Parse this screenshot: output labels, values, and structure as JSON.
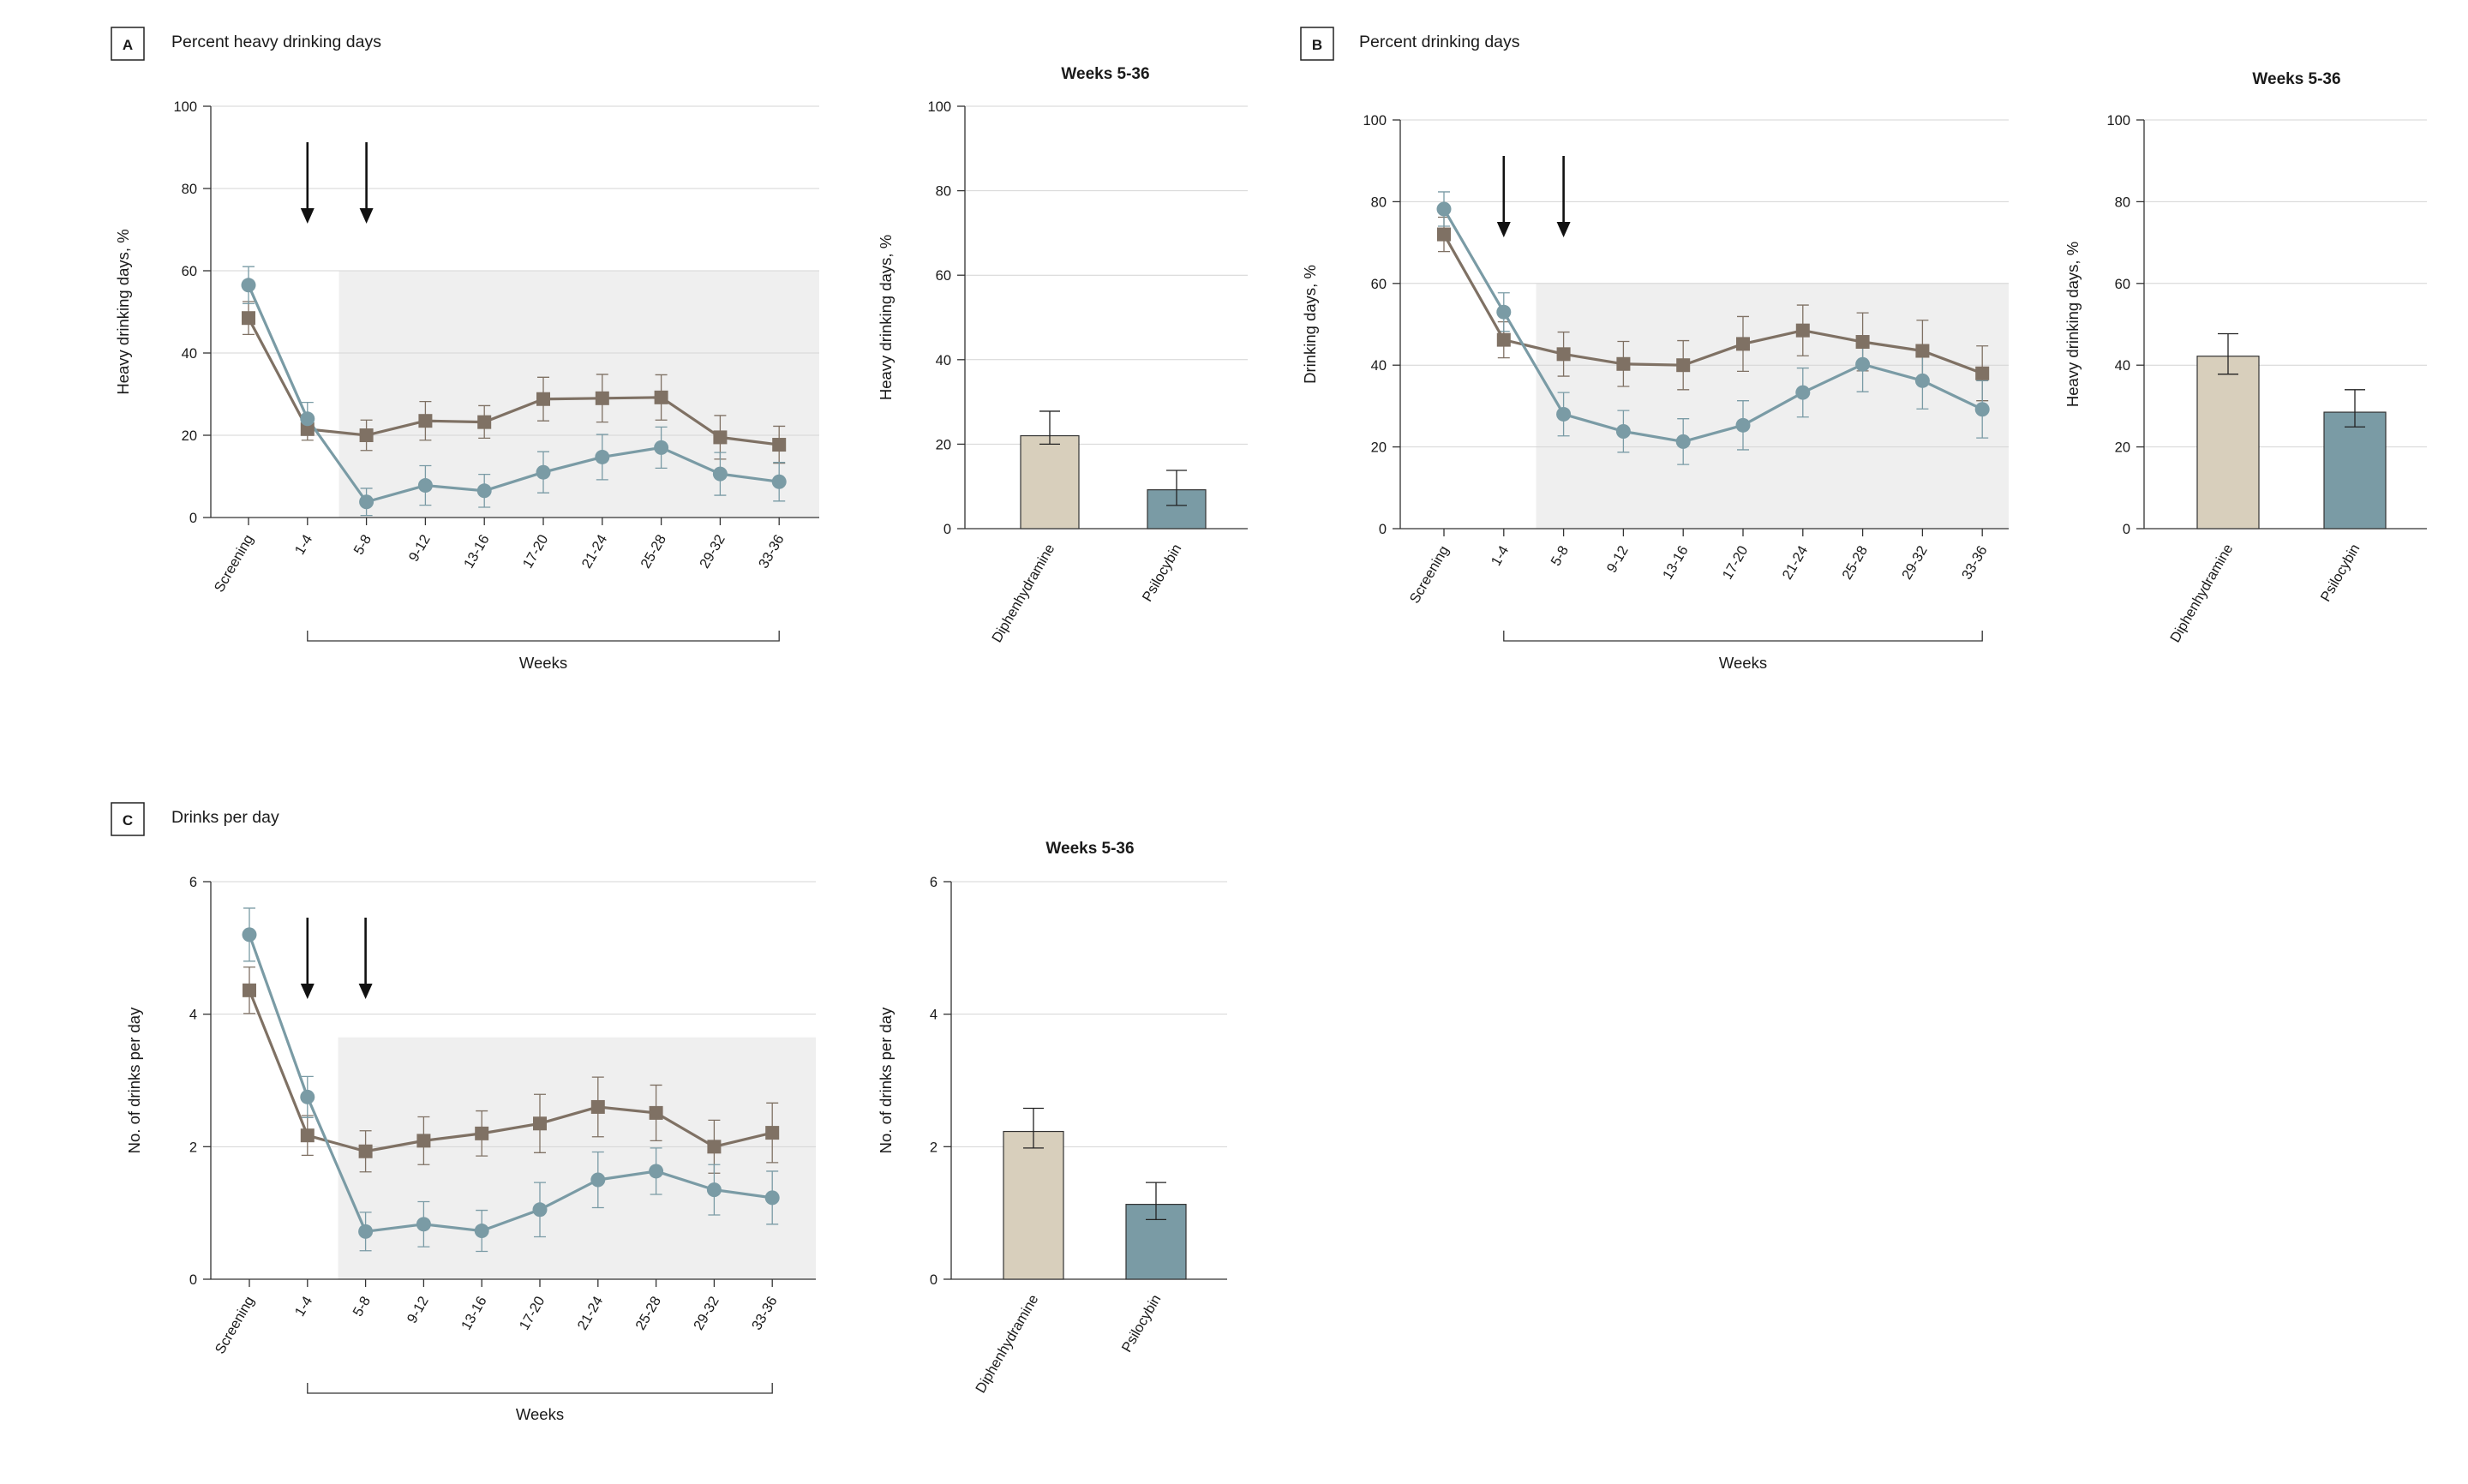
{
  "chart_data": [
    {
      "panel": "A",
      "type": "line",
      "title": "Percent heavy drinking days",
      "xlabel": "Weeks",
      "ylabel": "Heavy drinking days, %",
      "ylim": [
        0,
        100
      ],
      "yticks": [
        0,
        20,
        40,
        60,
        80,
        100
      ],
      "categories": [
        "Screening",
        "1-4",
        "5-8",
        "9-12",
        "13-16",
        "17-20",
        "21-24",
        "25-28",
        "29-32",
        "33-36"
      ],
      "grid": true,
      "shaded_from_category": "5-8",
      "arrows_at": [
        "1-4",
        "5-8"
      ],
      "series": [
        {
          "color": "#7f7164",
          "marker": "square",
          "values": [
            48.5,
            21.5,
            20,
            23.5,
            23.2,
            28.8,
            29,
            29.2,
            19.5,
            17.7
          ],
          "lower": [
            44.5,
            18.8,
            16.3,
            18.8,
            19.3,
            23.5,
            23.2,
            23.7,
            14.2,
            13.2
          ],
          "upper": [
            52.5,
            24.2,
            23.7,
            28.2,
            27.2,
            34.1,
            34.8,
            34.7,
            24.8,
            22.2
          ]
        },
        {
          "color": "#7a9ba5",
          "marker": "circle",
          "values": [
            56.5,
            24,
            3.8,
            7.8,
            6.5,
            11,
            14.7,
            17,
            10.6,
            8.7
          ],
          "lower": [
            52,
            20,
            0.5,
            3,
            2.5,
            6,
            9.2,
            12,
            5.4,
            4
          ],
          "upper": [
            61,
            28,
            7.1,
            12.6,
            10.5,
            16,
            20.2,
            22,
            15.8,
            13.4
          ]
        }
      ]
    },
    {
      "panel": "A",
      "type": "bar",
      "title": "Weeks 5-36",
      "ylabel": "Heavy drinking days, %",
      "ylim": [
        0,
        100
      ],
      "yticks": [
        0,
        20,
        40,
        60,
        80,
        100
      ],
      "categories": [
        "Diphenhydramine",
        "Psilocybin"
      ],
      "values": [
        22,
        9.2
      ],
      "lower": [
        20,
        5.5
      ],
      "upper": [
        27.8,
        13.8
      ],
      "colors": [
        "#d8cfbc",
        "#7a9ba5"
      ]
    },
    {
      "panel": "B",
      "type": "line",
      "title": "Percent drinking days",
      "xlabel": "Weeks",
      "ylabel": "Drinking days, %",
      "ylim": [
        0,
        100
      ],
      "yticks": [
        0,
        20,
        40,
        60,
        80,
        100
      ],
      "categories": [
        "Screening",
        "1-4",
        "5-8",
        "9-12",
        "13-16",
        "17-20",
        "21-24",
        "25-28",
        "29-32",
        "33-36"
      ],
      "grid": true,
      "shaded_from_category": "5-8",
      "arrows_at": [
        "1-4",
        "5-8"
      ],
      "series": [
        {
          "color": "#7f7164",
          "marker": "square",
          "values": [
            72,
            46.2,
            42.7,
            40.3,
            40,
            45.2,
            48.5,
            45.7,
            43.5,
            38
          ],
          "lower": [
            67.8,
            41.8,
            37.3,
            34.8,
            34,
            38.5,
            42.3,
            38.6,
            36,
            31.3
          ],
          "upper": [
            76.2,
            50.6,
            48.1,
            45.8,
            46,
            51.9,
            54.7,
            52.8,
            51,
            44.7
          ]
        },
        {
          "color": "#7a9ba5",
          "marker": "circle",
          "values": [
            78.2,
            53,
            28,
            23.8,
            21.3,
            25.3,
            33.3,
            40.2,
            36.2,
            29.2
          ],
          "lower": [
            74,
            48.3,
            22.7,
            18.7,
            15.7,
            19.3,
            27.3,
            33.5,
            29.3,
            22.2
          ],
          "upper": [
            82.4,
            57.7,
            33.3,
            28.9,
            26.9,
            31.3,
            39.3,
            46.9,
            43.1,
            36.2
          ]
        }
      ]
    },
    {
      "panel": "B",
      "type": "bar",
      "title": "Weeks 5-36",
      "ylabel": "Heavy drinking days, %",
      "ylim": [
        0,
        100
      ],
      "yticks": [
        0,
        20,
        40,
        60,
        80,
        100
      ],
      "categories": [
        "Diphenhydramine",
        "Psilocybin"
      ],
      "values": [
        42.2,
        28.5
      ],
      "lower": [
        37.8,
        24.9
      ],
      "upper": [
        47.7,
        34
      ],
      "colors": [
        "#d8cfbc",
        "#7a9ba5"
      ]
    },
    {
      "panel": "C",
      "type": "line",
      "title": "Drinks per day",
      "xlabel": "Weeks",
      "ylabel": "No. of drinks per day",
      "ylim": [
        0,
        6
      ],
      "yticks": [
        0,
        2,
        4,
        6
      ],
      "categories": [
        "Screening",
        "1-4",
        "5-8",
        "9-12",
        "13-16",
        "17-20",
        "21-24",
        "25-28",
        "29-32",
        "33-36"
      ],
      "grid": true,
      "shaded_from_category": "5-8",
      "arrows_at": [
        "1-4",
        "5-8"
      ],
      "series": [
        {
          "color": "#7f7164",
          "marker": "square",
          "values": [
            4.36,
            2.17,
            1.93,
            2.09,
            2.2,
            2.35,
            2.6,
            2.51,
            2,
            2.21
          ],
          "lower": [
            4.01,
            1.87,
            1.62,
            1.73,
            1.86,
            1.91,
            2.15,
            2.09,
            1.6,
            1.76
          ],
          "upper": [
            4.71,
            2.47,
            2.24,
            2.45,
            2.54,
            2.79,
            3.05,
            2.93,
            2.4,
            2.66
          ]
        },
        {
          "color": "#7a9ba5",
          "marker": "circle",
          "values": [
            5.2,
            2.75,
            0.72,
            0.83,
            0.73,
            1.05,
            1.5,
            1.63,
            1.35,
            1.23
          ],
          "lower": [
            4.8,
            2.44,
            0.43,
            0.49,
            0.42,
            0.64,
            1.08,
            1.28,
            0.97,
            0.83
          ],
          "upper": [
            5.6,
            3.06,
            1.01,
            1.17,
            1.04,
            1.46,
            1.92,
            1.98,
            1.73,
            1.63
          ]
        }
      ]
    },
    {
      "panel": "C",
      "type": "bar",
      "title": "Weeks 5-36",
      "ylabel": "No. of drinks per day",
      "ylim": [
        0,
        6
      ],
      "yticks": [
        0,
        2,
        4,
        6
      ],
      "categories": [
        "Diphenhydramine",
        "Psilocybin"
      ],
      "values": [
        2.23,
        1.13
      ],
      "lower": [
        1.98,
        0.9
      ],
      "upper": [
        2.58,
        1.46
      ],
      "colors": [
        "#d8cfbc",
        "#7a9ba5"
      ]
    }
  ]
}
